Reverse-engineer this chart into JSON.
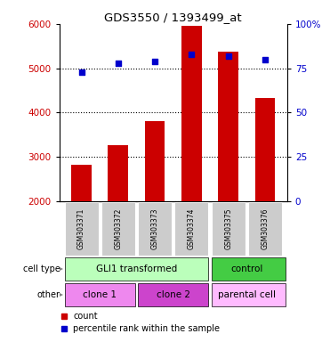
{
  "title": "GDS3550 / 1393499_at",
  "samples": [
    "GSM303371",
    "GSM303372",
    "GSM303373",
    "GSM303374",
    "GSM303375",
    "GSM303376"
  ],
  "counts": [
    2820,
    3270,
    3800,
    5950,
    5380,
    4320
  ],
  "percentile_ranks": [
    73,
    78,
    79,
    83,
    82,
    80
  ],
  "ylim_left": [
    2000,
    6000
  ],
  "ylim_right": [
    0,
    100
  ],
  "yticks_left": [
    2000,
    3000,
    4000,
    5000,
    6000
  ],
  "yticks_right": [
    0,
    25,
    50,
    75,
    100
  ],
  "bar_color": "#cc0000",
  "dot_color": "#0000cc",
  "bar_width": 0.55,
  "cell_type_labels": [
    "GLI1 transformed",
    "control"
  ],
  "cell_type_color_gli": "#bbffbb",
  "cell_type_color_ctrl": "#44cc44",
  "other_labels": [
    "clone 1",
    "clone 2",
    "parental cell"
  ],
  "other_color_clone1": "#ee88ee",
  "other_color_clone2": "#cc44cc",
  "other_color_parental": "#ffbbff",
  "background_color": "#ffffff",
  "tick_area_color": "#cccccc",
  "row_label_cell_type": "cell type",
  "row_label_other": "other",
  "legend_count": "count",
  "legend_percentile": "percentile rank within the sample"
}
